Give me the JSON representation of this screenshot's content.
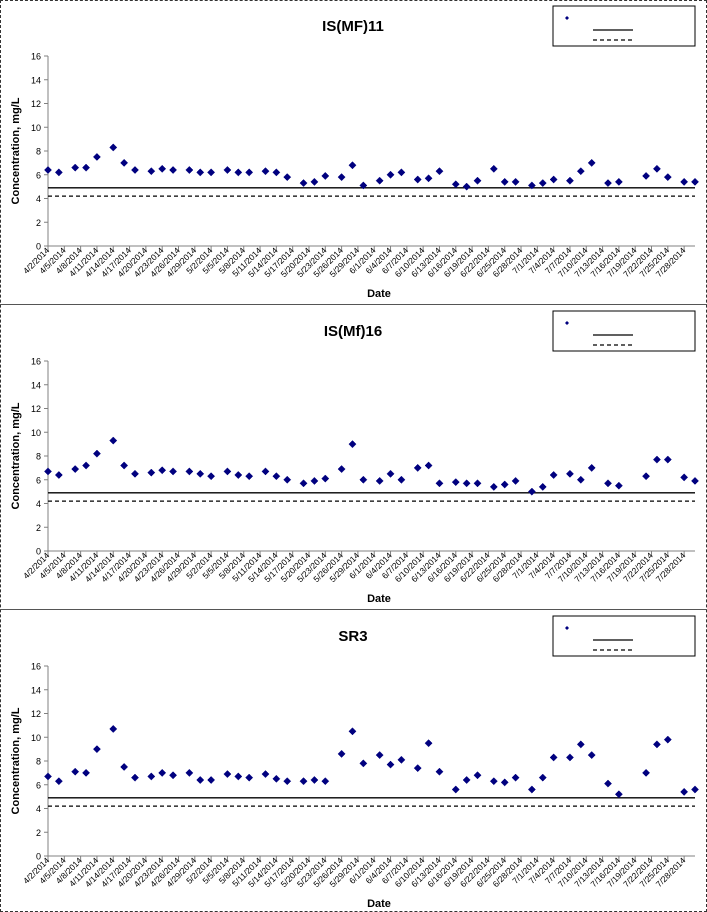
{
  "x_labels": [
    "4/2/2014",
    "4/5/2014",
    "4/8/2014",
    "4/11/2014",
    "4/14/2014",
    "4/17/2014",
    "4/20/2014",
    "4/23/2014",
    "4/26/2014",
    "4/29/2014",
    "5/2/2014",
    "5/5/2014",
    "5/8/2014",
    "5/11/2014",
    "5/14/2014",
    "5/17/2014",
    "5/20/2014",
    "5/23/2014",
    "5/26/2014",
    "5/29/2014",
    "6/1/2014",
    "6/4/2014",
    "6/7/2014",
    "6/10/2014",
    "6/13/2014",
    "6/16/2014",
    "6/19/2014",
    "6/22/2014",
    "6/25/2014",
    "6/28/2014",
    "7/1/2014",
    "7/4/2014",
    "7/7/2014",
    "7/10/2014",
    "7/13/2014",
    "7/16/2014",
    "7/19/2014",
    "7/22/2014",
    "7/25/2014",
    "7/28/2014"
  ],
  "chart_data": [
    {
      "type": "scatter",
      "title": "IS(MF)11",
      "xlabel": "Date",
      "ylabel": "Concentration, mg/L",
      "ylim": [
        0,
        16
      ],
      "yticks": [
        0,
        2,
        4,
        6,
        8,
        10,
        12,
        14,
        16
      ],
      "x_start": "4/2/2014",
      "x_end": "7/30/2014",
      "solid_line": 4.9,
      "dashed_line": 4.2,
      "legend_placement": "top-right",
      "series": [
        {
          "color": "#00007f",
          "marker": "diamond",
          "points": [
            [
              "4/2/2014",
              6.4
            ],
            [
              "4/4/2014",
              6.2
            ],
            [
              "4/7/2014",
              6.6
            ],
            [
              "4/9/2014",
              6.6
            ],
            [
              "4/11/2014",
              7.5
            ],
            [
              "4/14/2014",
              8.3
            ],
            [
              "4/16/2014",
              7.0
            ],
            [
              "4/18/2014",
              6.4
            ],
            [
              "4/21/2014",
              6.3
            ],
            [
              "4/23/2014",
              6.5
            ],
            [
              "4/25/2014",
              6.4
            ],
            [
              "4/28/2014",
              6.4
            ],
            [
              "4/30/2014",
              6.2
            ],
            [
              "5/2/2014",
              6.2
            ],
            [
              "5/5/2014",
              6.4
            ],
            [
              "5/7/2014",
              6.2
            ],
            [
              "5/9/2014",
              6.2
            ],
            [
              "5/12/2014",
              6.3
            ],
            [
              "5/14/2014",
              6.2
            ],
            [
              "5/16/2014",
              5.8
            ],
            [
              "5/19/2014",
              5.3
            ],
            [
              "5/21/2014",
              5.4
            ],
            [
              "5/23/2014",
              5.9
            ],
            [
              "5/26/2014",
              5.8
            ],
            [
              "5/28/2014",
              6.8
            ],
            [
              "5/30/2014",
              5.1
            ],
            [
              "6/2/2014",
              5.5
            ],
            [
              "6/4/2014",
              6.0
            ],
            [
              "6/6/2014",
              6.2
            ],
            [
              "6/9/2014",
              5.6
            ],
            [
              "6/11/2014",
              5.7
            ],
            [
              "6/13/2014",
              6.3
            ],
            [
              "6/16/2014",
              5.2
            ],
            [
              "6/18/2014",
              5.0
            ],
            [
              "6/20/2014",
              5.5
            ],
            [
              "6/23/2014",
              6.5
            ],
            [
              "6/25/2014",
              5.4
            ],
            [
              "6/27/2014",
              5.4
            ],
            [
              "6/30/2014",
              5.1
            ],
            [
              "7/2/2014",
              5.3
            ],
            [
              "7/4/2014",
              5.6
            ],
            [
              "7/7/2014",
              5.5
            ],
            [
              "7/9/2014",
              6.3
            ],
            [
              "7/11/2014",
              7.0
            ],
            [
              "7/14/2014",
              5.3
            ],
            [
              "7/16/2014",
              5.4
            ],
            [
              "7/21/2014",
              5.9
            ],
            [
              "7/23/2014",
              6.5
            ],
            [
              "7/25/2014",
              5.8
            ],
            [
              "7/28/2014",
              5.4
            ],
            [
              "7/30/2014",
              5.4
            ]
          ]
        }
      ]
    },
    {
      "type": "scatter",
      "title": "IS(Mf)16",
      "xlabel": "Date",
      "ylabel": "Concentration, mg/L",
      "ylim": [
        0,
        16
      ],
      "yticks": [
        0,
        2,
        4,
        6,
        8,
        10,
        12,
        14,
        16
      ],
      "x_start": "4/2/2014",
      "x_end": "7/30/2014",
      "solid_line": 4.9,
      "dashed_line": 4.2,
      "legend_placement": "top-right",
      "series": [
        {
          "color": "#00007f",
          "marker": "diamond",
          "points": [
            [
              "4/2/2014",
              6.7
            ],
            [
              "4/4/2014",
              6.4
            ],
            [
              "4/7/2014",
              6.9
            ],
            [
              "4/9/2014",
              7.2
            ],
            [
              "4/11/2014",
              8.2
            ],
            [
              "4/14/2014",
              9.3
            ],
            [
              "4/16/2014",
              7.2
            ],
            [
              "4/18/2014",
              6.5
            ],
            [
              "4/21/2014",
              6.6
            ],
            [
              "4/23/2014",
              6.8
            ],
            [
              "4/25/2014",
              6.7
            ],
            [
              "4/28/2014",
              6.7
            ],
            [
              "4/30/2014",
              6.5
            ],
            [
              "5/2/2014",
              6.3
            ],
            [
              "5/5/2014",
              6.7
            ],
            [
              "5/7/2014",
              6.4
            ],
            [
              "5/9/2014",
              6.3
            ],
            [
              "5/12/2014",
              6.7
            ],
            [
              "5/14/2014",
              6.3
            ],
            [
              "5/16/2014",
              6.0
            ],
            [
              "5/19/2014",
              5.7
            ],
            [
              "5/21/2014",
              5.9
            ],
            [
              "5/23/2014",
              6.1
            ],
            [
              "5/26/2014",
              6.9
            ],
            [
              "5/28/2014",
              9.0
            ],
            [
              "5/30/2014",
              6.0
            ],
            [
              "6/2/2014",
              5.9
            ],
            [
              "6/4/2014",
              6.5
            ],
            [
              "6/6/2014",
              6.0
            ],
            [
              "6/9/2014",
              7.0
            ],
            [
              "6/11/2014",
              7.2
            ],
            [
              "6/13/2014",
              5.7
            ],
            [
              "6/16/2014",
              5.8
            ],
            [
              "6/18/2014",
              5.7
            ],
            [
              "6/20/2014",
              5.7
            ],
            [
              "6/23/2014",
              5.4
            ],
            [
              "6/25/2014",
              5.6
            ],
            [
              "6/27/2014",
              5.9
            ],
            [
              "6/30/2014",
              5.0
            ],
            [
              "7/2/2014",
              5.4
            ],
            [
              "7/4/2014",
              6.4
            ],
            [
              "7/7/2014",
              6.5
            ],
            [
              "7/9/2014",
              6.0
            ],
            [
              "7/11/2014",
              7.0
            ],
            [
              "7/14/2014",
              5.7
            ],
            [
              "7/16/2014",
              5.5
            ],
            [
              "7/21/2014",
              6.3
            ],
            [
              "7/23/2014",
              7.7
            ],
            [
              "7/25/2014",
              7.7
            ],
            [
              "7/28/2014",
              6.2
            ],
            [
              "7/30/2014",
              5.9
            ]
          ]
        }
      ]
    },
    {
      "type": "scatter",
      "title": "SR3",
      "xlabel": "Date",
      "ylabel": "Concentration, mg/L",
      "ylim": [
        0,
        16
      ],
      "yticks": [
        0,
        2,
        4,
        6,
        8,
        10,
        12,
        14,
        16
      ],
      "x_start": "4/2/2014",
      "x_end": "7/30/2014",
      "solid_line": 4.9,
      "dashed_line": 4.2,
      "legend_placement": "top-right",
      "series": [
        {
          "color": "#00007f",
          "marker": "diamond",
          "points": [
            [
              "4/2/2014",
              6.7
            ],
            [
              "4/4/2014",
              6.3
            ],
            [
              "4/7/2014",
              7.1
            ],
            [
              "4/9/2014",
              7.0
            ],
            [
              "4/11/2014",
              9.0
            ],
            [
              "4/14/2014",
              10.7
            ],
            [
              "4/16/2014",
              7.5
            ],
            [
              "4/18/2014",
              6.6
            ],
            [
              "4/21/2014",
              6.7
            ],
            [
              "4/23/2014",
              7.0
            ],
            [
              "4/25/2014",
              6.8
            ],
            [
              "4/28/2014",
              7.0
            ],
            [
              "4/30/2014",
              6.4
            ],
            [
              "5/2/2014",
              6.4
            ],
            [
              "5/5/2014",
              6.9
            ],
            [
              "5/7/2014",
              6.7
            ],
            [
              "5/9/2014",
              6.6
            ],
            [
              "5/12/2014",
              6.9
            ],
            [
              "5/14/2014",
              6.5
            ],
            [
              "5/16/2014",
              6.3
            ],
            [
              "5/19/2014",
              6.3
            ],
            [
              "5/21/2014",
              6.4
            ],
            [
              "5/23/2014",
              6.3
            ],
            [
              "5/26/2014",
              8.6
            ],
            [
              "5/28/2014",
              10.5
            ],
            [
              "5/30/2014",
              7.8
            ],
            [
              "6/2/2014",
              8.5
            ],
            [
              "6/4/2014",
              7.7
            ],
            [
              "6/6/2014",
              8.1
            ],
            [
              "6/9/2014",
              7.4
            ],
            [
              "6/11/2014",
              9.5
            ],
            [
              "6/13/2014",
              7.1
            ],
            [
              "6/16/2014",
              5.6
            ],
            [
              "6/18/2014",
              6.4
            ],
            [
              "6/20/2014",
              6.8
            ],
            [
              "6/23/2014",
              6.3
            ],
            [
              "6/25/2014",
              6.2
            ],
            [
              "6/27/2014",
              6.6
            ],
            [
              "6/30/2014",
              5.6
            ],
            [
              "7/2/2014",
              6.6
            ],
            [
              "7/4/2014",
              8.3
            ],
            [
              "7/7/2014",
              8.3
            ],
            [
              "7/9/2014",
              9.4
            ],
            [
              "7/11/2014",
              8.5
            ],
            [
              "7/14/2014",
              6.1
            ],
            [
              "7/16/2014",
              5.2
            ],
            [
              "7/21/2014",
              7.0
            ],
            [
              "7/23/2014",
              9.4
            ],
            [
              "7/25/2014",
              9.8
            ],
            [
              "7/28/2014",
              5.4
            ],
            [
              "7/30/2014",
              5.6
            ]
          ]
        }
      ]
    }
  ]
}
